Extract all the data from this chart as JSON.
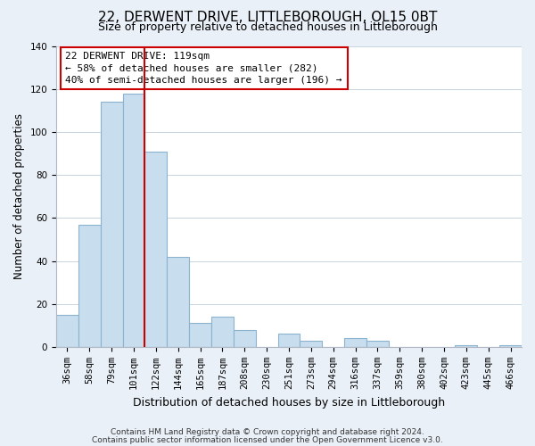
{
  "title": "22, DERWENT DRIVE, LITTLEBOROUGH, OL15 0BT",
  "subtitle": "Size of property relative to detached houses in Littleborough",
  "xlabel": "Distribution of detached houses by size in Littleborough",
  "ylabel": "Number of detached properties",
  "bar_labels": [
    "36sqm",
    "58sqm",
    "79sqm",
    "101sqm",
    "122sqm",
    "144sqm",
    "165sqm",
    "187sqm",
    "208sqm",
    "230sqm",
    "251sqm",
    "273sqm",
    "294sqm",
    "316sqm",
    "337sqm",
    "359sqm",
    "380sqm",
    "402sqm",
    "423sqm",
    "445sqm",
    "466sqm"
  ],
  "bar_values": [
    15,
    57,
    114,
    118,
    91,
    42,
    11,
    14,
    8,
    0,
    6,
    3,
    0,
    4,
    3,
    0,
    0,
    0,
    1,
    0,
    1
  ],
  "bar_color": "#c8dded",
  "bar_edge_color": "#8ab4d0",
  "ylim": [
    0,
    140
  ],
  "yticks": [
    0,
    20,
    40,
    60,
    80,
    100,
    120,
    140
  ],
  "property_line_index": 4,
  "property_line_color": "#cc0000",
  "annotation_text": "22 DERWENT DRIVE: 119sqm\n← 58% of detached houses are smaller (282)\n40% of semi-detached houses are larger (196) →",
  "annotation_box_color": "#ffffff",
  "annotation_box_edge_color": "#cc0000",
  "footnote1": "Contains HM Land Registry data © Crown copyright and database right 2024.",
  "footnote2": "Contains public sector information licensed under the Open Government Licence v3.0.",
  "background_color": "#eaf0f8",
  "plot_background_color": "#ffffff",
  "grid_color": "#c8d4e0",
  "title_fontsize": 11,
  "subtitle_fontsize": 9,
  "xlabel_fontsize": 9,
  "ylabel_fontsize": 8.5,
  "tick_fontsize": 7.5,
  "annotation_fontsize": 8,
  "footnote_fontsize": 6.5
}
